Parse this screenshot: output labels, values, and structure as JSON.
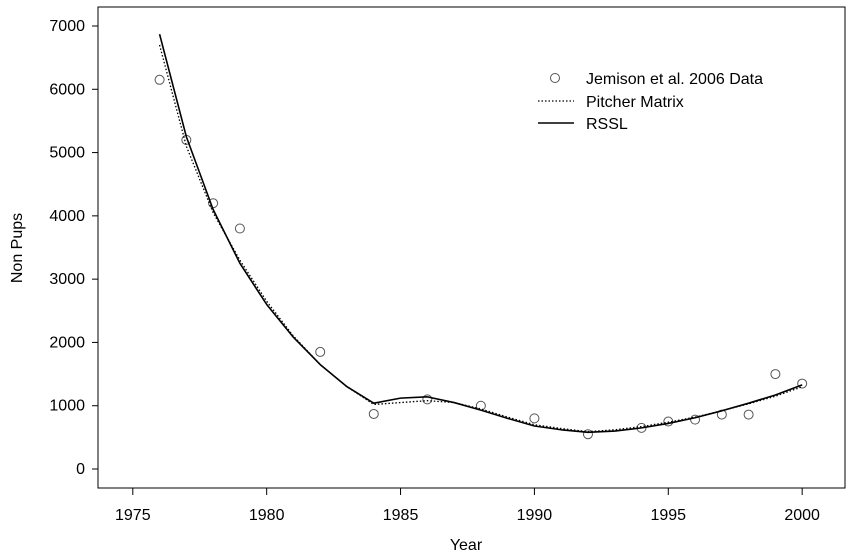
{
  "chart_data": {
    "type": "line",
    "xlabel": "Year",
    "ylabel": "Non Pups",
    "xlim": [
      1973.7,
      2001.6
    ],
    "ylim": [
      -300,
      7300
    ],
    "xticks": [
      1975,
      1980,
      1985,
      1990,
      1995,
      2000
    ],
    "yticks": [
      0,
      1000,
      2000,
      3000,
      4000,
      5000,
      6000,
      7000
    ],
    "grid": false,
    "legend_position": "top-right",
    "series": [
      {
        "name": "Jemison et al. 2006 Data",
        "style": "points",
        "x": [
          1976,
          1977,
          1978,
          1979,
          1982,
          1984,
          1986,
          1988,
          1990,
          1992,
          1994,
          1995,
          1996,
          1997,
          1998,
          1999,
          2000
        ],
        "y": [
          6150,
          5200,
          4200,
          3800,
          1850,
          870,
          1100,
          1000,
          800,
          550,
          650,
          750,
          780,
          860,
          860,
          1500,
          1350
        ]
      },
      {
        "name": "Pitcher Matrix",
        "style": "dotted",
        "x": [
          1976,
          1977,
          1978,
          1979,
          1980,
          1981,
          1982,
          1983,
          1984,
          1985,
          1986,
          1987,
          1988,
          1989,
          1990,
          1991,
          1992,
          1993,
          1994,
          1995,
          1996,
          1997,
          1998,
          1999,
          2000
        ],
        "y": [
          6700,
          5100,
          4050,
          3300,
          2650,
          2100,
          1650,
          1300,
          1020,
          1050,
          1080,
          1050,
          950,
          820,
          700,
          640,
          590,
          620,
          670,
          740,
          820,
          920,
          1030,
          1150,
          1300
        ]
      },
      {
        "name": "RSSL",
        "style": "solid",
        "x": [
          1976,
          1977,
          1978,
          1979,
          1980,
          1981,
          1982,
          1983,
          1984,
          1985,
          1986,
          1987,
          1988,
          1989,
          1990,
          1991,
          1992,
          1993,
          1994,
          1995,
          1996,
          1997,
          1998,
          1999,
          2000
        ],
        "y": [
          6870,
          5250,
          4100,
          3250,
          2600,
          2080,
          1650,
          1300,
          1040,
          1120,
          1140,
          1050,
          930,
          800,
          680,
          620,
          580,
          600,
          650,
          720,
          810,
          920,
          1040,
          1170,
          1330
        ]
      }
    ]
  }
}
